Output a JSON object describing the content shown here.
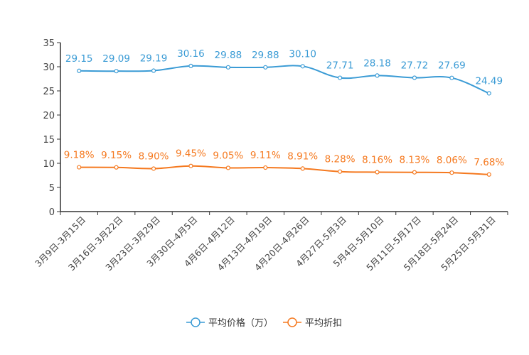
{
  "chart_data": {
    "type": "line",
    "title": "",
    "xlabel": "",
    "ylabel": "",
    "ylim": [
      0,
      35
    ],
    "yticks": [
      0,
      5,
      10,
      15,
      20,
      25,
      30,
      35
    ],
    "grid": false,
    "legend_position": "bottom-center",
    "categories": [
      "3月9日-3月15日",
      "3月16日-3月22日",
      "3月23日-3月29日",
      "3月30日-4月5日",
      "4月6日-4月12日",
      "4月13日-4月19日",
      "4月20日-4月26日",
      "4月27日-5月3日",
      "5月4日-5月10日",
      "5月11日-5月17日",
      "5月18日-5月24日",
      "5月25日-5月31日"
    ],
    "series": [
      {
        "name": "平均价格（万）",
        "color": "#3a9bd5",
        "values": [
          29.15,
          29.09,
          29.19,
          30.16,
          29.88,
          29.88,
          30.1,
          27.71,
          28.18,
          27.72,
          27.69,
          24.49
        ],
        "labels": [
          "29.15",
          "29.09",
          "29.19",
          "30.16",
          "29.88",
          "29.88",
          "30.10",
          "27.71",
          "28.18",
          "27.72",
          "27.69",
          "24.49"
        ]
      },
      {
        "name": "平均折扣",
        "color": "#f5791f",
        "values": [
          9.18,
          9.15,
          8.9,
          9.45,
          9.05,
          9.11,
          8.91,
          8.28,
          8.16,
          8.13,
          8.06,
          7.68
        ],
        "labels": [
          "9.18%",
          "9.15%",
          "8.90%",
          "9.45%",
          "9.05%",
          "9.11%",
          "8.91%",
          "8.28%",
          "8.16%",
          "8.13%",
          "8.06%",
          "7.68%"
        ]
      }
    ]
  }
}
